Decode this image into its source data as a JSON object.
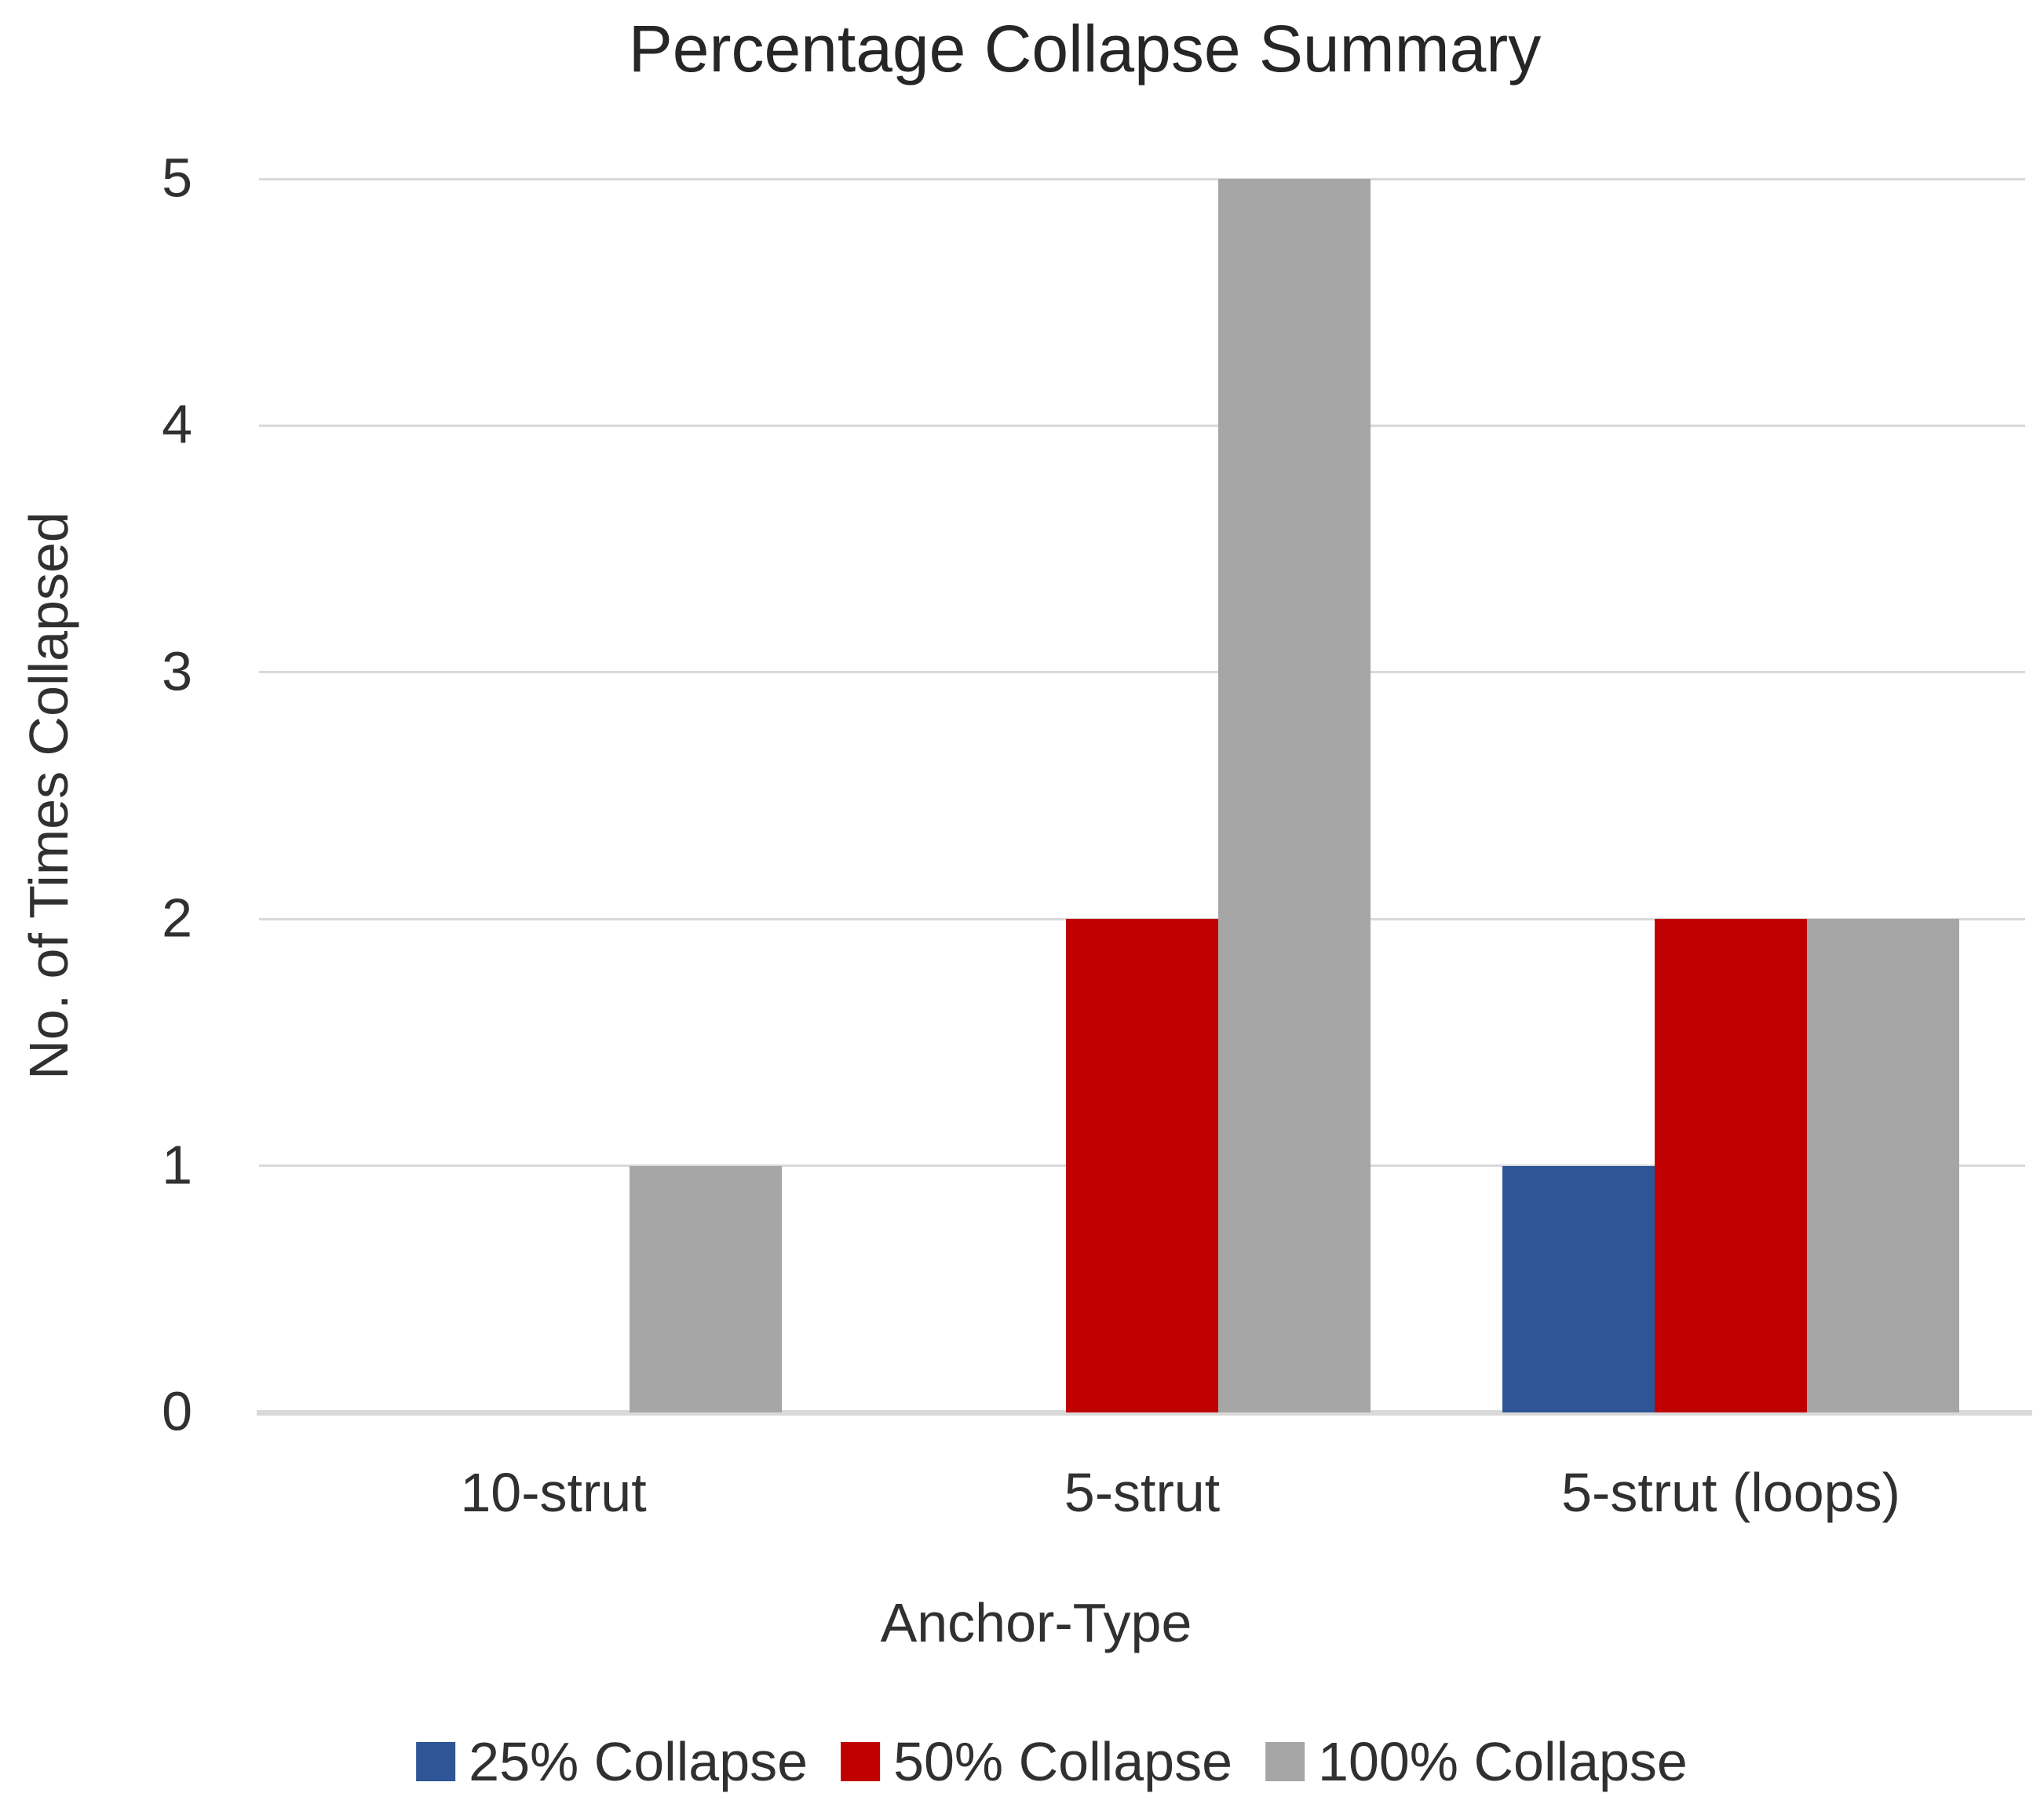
{
  "chart_data": {
    "type": "bar",
    "title": "Percentage Collapse Summary",
    "xlabel": "Anchor-Type",
    "ylabel": "No. of Times Collapsed",
    "categories": [
      "10-strut",
      "5-strut",
      "5-strut (loops)"
    ],
    "series": [
      {
        "name": "25% Collapse",
        "color": "#2F5597",
        "values": [
          0,
          0,
          1
        ]
      },
      {
        "name": "50% Collapse",
        "color": "#C00000",
        "values": [
          0,
          2,
          2
        ]
      },
      {
        "name": "100% Collapse",
        "color": "#A6A6A6",
        "values": [
          1,
          5,
          2
        ]
      }
    ],
    "ylim": [
      0,
      5
    ],
    "yticks": [
      0,
      1,
      2,
      3,
      4,
      5
    ],
    "grid": true,
    "legend_position": "bottom",
    "colors": {
      "gridline": "#D9D9D9",
      "axis_line": "#D9D9D9",
      "text": "#303030",
      "background": "#FFFFFF"
    }
  }
}
